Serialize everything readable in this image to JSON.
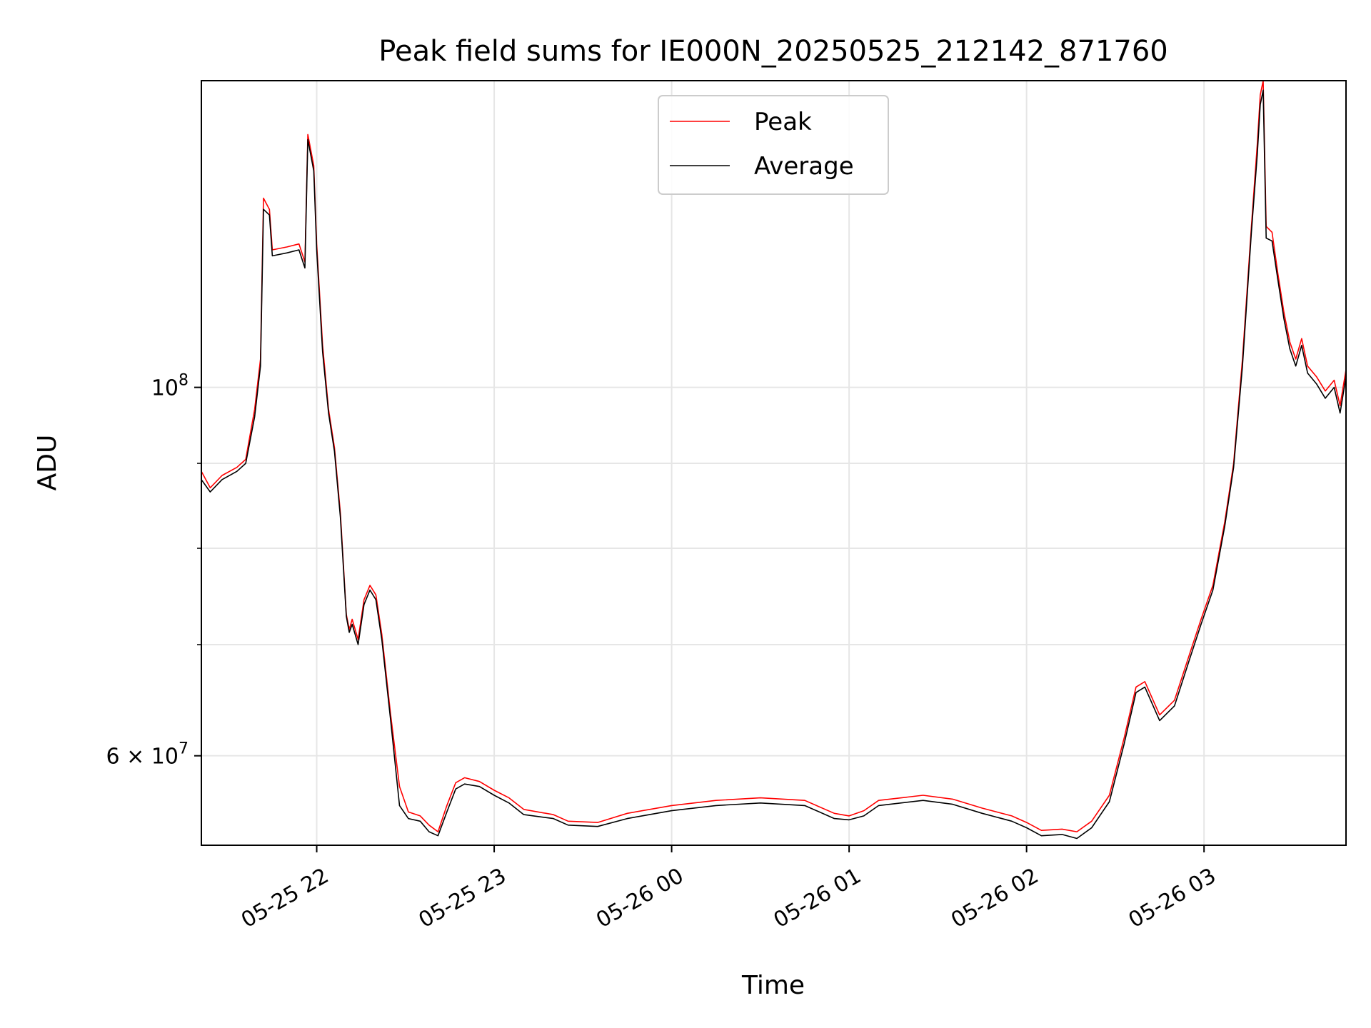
{
  "chart_data": {
    "type": "line",
    "title": "Peak field sums for IE000N_20250525_212142_871760",
    "xlabel": "Time",
    "ylabel": "ADU",
    "y_scale": "log",
    "grid": true,
    "legend_position": "top-center",
    "xlim": [
      "2025-05-25 21:21",
      "2025-05-26 03:48"
    ],
    "ylim": [
      53000000,
      153000000
    ],
    "x_ticks": [
      {
        "t": "2025-05-25 22:00",
        "label": "05-25 22"
      },
      {
        "t": "2025-05-25 23:00",
        "label": "05-25 23"
      },
      {
        "t": "2025-05-26 00:00",
        "label": "05-26 00"
      },
      {
        "t": "2025-05-26 01:00",
        "label": "05-26 01"
      },
      {
        "t": "2025-05-26 02:00",
        "label": "05-26 02"
      },
      {
        "t": "2025-05-26 03:00",
        "label": "05-26 03"
      }
    ],
    "y_ticks": [
      {
        "value": 60000000,
        "label": "6 × 10⁷",
        "base": "6 × 10",
        "exp": "7"
      },
      {
        "value": 100000000,
        "label": "10⁸",
        "base": "10",
        "exp": "8"
      }
    ],
    "y_minor_gridlines": [
      70000000,
      80000000,
      90000000,
      200000000
    ],
    "series": [
      {
        "name": "Peak",
        "color": "#ff0000",
        "points": [
          [
            "2025-05-25 21:21",
            89000000
          ],
          [
            "2025-05-25 21:24",
            87000000
          ],
          [
            "2025-05-25 21:28",
            88500000
          ],
          [
            "2025-05-25 21:33",
            89500000
          ],
          [
            "2025-05-25 21:36",
            90500000
          ],
          [
            "2025-05-25 21:39",
            97000000
          ],
          [
            "2025-05-25 21:41",
            104000000
          ],
          [
            "2025-05-25 21:42",
            130000000
          ],
          [
            "2025-05-25 21:44",
            128000000
          ],
          [
            "2025-05-25 21:45",
            121000000
          ],
          [
            "2025-05-25 21:50",
            121500000
          ],
          [
            "2025-05-25 21:54",
            122000000
          ],
          [
            "2025-05-25 21:56",
            119000000
          ],
          [
            "2025-05-25 21:57",
            142000000
          ],
          [
            "2025-05-25 21:59",
            136000000
          ],
          [
            "2025-05-25 22:00",
            122000000
          ],
          [
            "2025-05-25 22:02",
            106000000
          ],
          [
            "2025-05-25 22:04",
            97000000
          ],
          [
            "2025-05-25 22:06",
            92000000
          ],
          [
            "2025-05-25 22:08",
            84000000
          ],
          [
            "2025-05-25 22:10",
            73000000
          ],
          [
            "2025-05-25 22:11",
            71500000
          ],
          [
            "2025-05-25 22:12",
            72500000
          ],
          [
            "2025-05-25 22:14",
            70500000
          ],
          [
            "2025-05-25 22:16",
            74500000
          ],
          [
            "2025-05-25 22:18",
            76000000
          ],
          [
            "2025-05-25 22:20",
            75000000
          ],
          [
            "2025-05-25 22:22",
            71000000
          ],
          [
            "2025-05-25 22:25",
            63500000
          ],
          [
            "2025-05-25 22:28",
            57500000
          ],
          [
            "2025-05-25 22:31",
            55500000
          ],
          [
            "2025-05-25 22:35",
            55200000
          ],
          [
            "2025-05-25 22:38",
            54500000
          ],
          [
            "2025-05-25 22:41",
            54000000
          ],
          [
            "2025-05-25 22:44",
            56000000
          ],
          [
            "2025-05-25 22:47",
            57800000
          ],
          [
            "2025-05-25 22:50",
            58200000
          ],
          [
            "2025-05-25 22:55",
            57900000
          ],
          [
            "2025-05-25 23:00",
            57200000
          ],
          [
            "2025-05-25 23:05",
            56600000
          ],
          [
            "2025-05-25 23:10",
            55700000
          ],
          [
            "2025-05-25 23:20",
            55300000
          ],
          [
            "2025-05-25 23:25",
            54800000
          ],
          [
            "2025-05-25 23:35",
            54700000
          ],
          [
            "2025-05-25 23:45",
            55400000
          ],
          [
            "2025-05-26 00:00",
            56000000
          ],
          [
            "2025-05-26 00:15",
            56400000
          ],
          [
            "2025-05-26 00:30",
            56600000
          ],
          [
            "2025-05-26 00:45",
            56400000
          ],
          [
            "2025-05-26 00:55",
            55400000
          ],
          [
            "2025-05-26 01:00",
            55200000
          ],
          [
            "2025-05-26 01:05",
            55600000
          ],
          [
            "2025-05-26 01:10",
            56400000
          ],
          [
            "2025-05-26 01:25",
            56800000
          ],
          [
            "2025-05-26 01:35",
            56500000
          ],
          [
            "2025-05-26 01:45",
            55800000
          ],
          [
            "2025-05-26 01:55",
            55200000
          ],
          [
            "2025-05-26 02:00",
            54700000
          ],
          [
            "2025-05-26 02:05",
            54100000
          ],
          [
            "2025-05-26 02:12",
            54200000
          ],
          [
            "2025-05-26 02:17",
            54000000
          ],
          [
            "2025-05-26 02:22",
            54800000
          ],
          [
            "2025-05-26 02:28",
            56800000
          ],
          [
            "2025-05-26 02:33",
            61500000
          ],
          [
            "2025-05-26 02:37",
            66000000
          ],
          [
            "2025-05-26 02:40",
            66500000
          ],
          [
            "2025-05-26 02:45",
            63500000
          ],
          [
            "2025-05-26 02:50",
            64800000
          ],
          [
            "2025-05-26 02:55",
            69000000
          ],
          [
            "2025-05-26 02:59",
            72500000
          ],
          [
            "2025-05-26 03:03",
            76000000
          ],
          [
            "2025-05-26 03:07",
            83000000
          ],
          [
            "2025-05-26 03:10",
            90000000
          ],
          [
            "2025-05-26 03:13",
            104000000
          ],
          [
            "2025-05-26 03:16",
            125000000
          ],
          [
            "2025-05-26 03:18",
            140000000
          ],
          [
            "2025-05-26 03:19",
            150000000
          ],
          [
            "2025-05-26 03:20",
            153000000
          ],
          [
            "2025-05-26 03:21",
            125000000
          ],
          [
            "2025-05-26 03:23",
            124000000
          ],
          [
            "2025-05-26 03:25",
            117000000
          ],
          [
            "2025-05-26 03:27",
            111000000
          ],
          [
            "2025-05-26 03:29",
            106500000
          ],
          [
            "2025-05-26 03:31",
            104000000
          ],
          [
            "2025-05-26 03:33",
            107000000
          ],
          [
            "2025-05-26 03:35",
            103000000
          ],
          [
            "2025-05-26 03:38",
            101500000
          ],
          [
            "2025-05-26 03:41",
            99500000
          ],
          [
            "2025-05-26 03:44",
            101000000
          ],
          [
            "2025-05-26 03:46",
            97500000
          ],
          [
            "2025-05-26 03:48",
            102500000
          ]
        ]
      },
      {
        "name": "Average",
        "color": "#000000",
        "points": [
          [
            "2025-05-25 21:21",
            88000000
          ],
          [
            "2025-05-25 21:24",
            86500000
          ],
          [
            "2025-05-25 21:28",
            88000000
          ],
          [
            "2025-05-25 21:33",
            89000000
          ],
          [
            "2025-05-25 21:36",
            90000000
          ],
          [
            "2025-05-25 21:39",
            96000000
          ],
          [
            "2025-05-25 21:41",
            103000000
          ],
          [
            "2025-05-25 21:42",
            128000000
          ],
          [
            "2025-05-25 21:44",
            127000000
          ],
          [
            "2025-05-25 21:45",
            120000000
          ],
          [
            "2025-05-25 21:50",
            120500000
          ],
          [
            "2025-05-25 21:54",
            121000000
          ],
          [
            "2025-05-25 21:56",
            118000000
          ],
          [
            "2025-05-25 21:57",
            141000000
          ],
          [
            "2025-05-25 21:59",
            135000000
          ],
          [
            "2025-05-25 22:00",
            121000000
          ],
          [
            "2025-05-25 22:02",
            105000000
          ],
          [
            "2025-05-25 22:04",
            96500000
          ],
          [
            "2025-05-25 22:06",
            91500000
          ],
          [
            "2025-05-25 22:08",
            83500000
          ],
          [
            "2025-05-25 22:10",
            72800000
          ],
          [
            "2025-05-25 22:11",
            71200000
          ],
          [
            "2025-05-25 22:12",
            72000000
          ],
          [
            "2025-05-25 22:14",
            70000000
          ],
          [
            "2025-05-25 22:16",
            74000000
          ],
          [
            "2025-05-25 22:18",
            75500000
          ],
          [
            "2025-05-25 22:20",
            74500000
          ],
          [
            "2025-05-25 22:22",
            70500000
          ],
          [
            "2025-05-25 22:25",
            63000000
          ],
          [
            "2025-05-25 22:28",
            56000000
          ],
          [
            "2025-05-25 22:31",
            55000000
          ],
          [
            "2025-05-25 22:35",
            54800000
          ],
          [
            "2025-05-25 22:38",
            54000000
          ],
          [
            "2025-05-25 22:41",
            53700000
          ],
          [
            "2025-05-25 22:44",
            55500000
          ],
          [
            "2025-05-25 22:47",
            57300000
          ],
          [
            "2025-05-25 22:50",
            57700000
          ],
          [
            "2025-05-25 22:55",
            57500000
          ],
          [
            "2025-05-25 23:00",
            56800000
          ],
          [
            "2025-05-25 23:05",
            56200000
          ],
          [
            "2025-05-25 23:10",
            55300000
          ],
          [
            "2025-05-25 23:20",
            55000000
          ],
          [
            "2025-05-25 23:25",
            54500000
          ],
          [
            "2025-05-25 23:35",
            54400000
          ],
          [
            "2025-05-25 23:45",
            55000000
          ],
          [
            "2025-05-26 00:00",
            55600000
          ],
          [
            "2025-05-26 00:15",
            56000000
          ],
          [
            "2025-05-26 00:30",
            56200000
          ],
          [
            "2025-05-26 00:45",
            56000000
          ],
          [
            "2025-05-26 00:55",
            55000000
          ],
          [
            "2025-05-26 01:00",
            54900000
          ],
          [
            "2025-05-26 01:05",
            55200000
          ],
          [
            "2025-05-26 01:10",
            56000000
          ],
          [
            "2025-05-26 01:25",
            56400000
          ],
          [
            "2025-05-26 01:35",
            56100000
          ],
          [
            "2025-05-26 01:45",
            55400000
          ],
          [
            "2025-05-26 01:55",
            54800000
          ],
          [
            "2025-05-26 02:00",
            54300000
          ],
          [
            "2025-05-26 02:05",
            53700000
          ],
          [
            "2025-05-26 02:12",
            53800000
          ],
          [
            "2025-05-26 02:17",
            53500000
          ],
          [
            "2025-05-26 02:22",
            54300000
          ],
          [
            "2025-05-26 02:28",
            56300000
          ],
          [
            "2025-05-26 02:33",
            61000000
          ],
          [
            "2025-05-26 02:37",
            65500000
          ],
          [
            "2025-05-26 02:40",
            66000000
          ],
          [
            "2025-05-26 02:45",
            63000000
          ],
          [
            "2025-05-26 02:50",
            64300000
          ],
          [
            "2025-05-26 02:55",
            68500000
          ],
          [
            "2025-05-26 02:59",
            72000000
          ],
          [
            "2025-05-26 03:03",
            75500000
          ],
          [
            "2025-05-26 03:07",
            82500000
          ],
          [
            "2025-05-26 03:10",
            89500000
          ],
          [
            "2025-05-26 03:13",
            103000000
          ],
          [
            "2025-05-26 03:16",
            124000000
          ],
          [
            "2025-05-26 03:18",
            138000000
          ],
          [
            "2025-05-26 03:19",
            148000000
          ],
          [
            "2025-05-26 03:20",
            151000000
          ],
          [
            "2025-05-26 03:21",
            123000000
          ],
          [
            "2025-05-26 03:23",
            122500000
          ],
          [
            "2025-05-26 03:25",
            116000000
          ],
          [
            "2025-05-26 03:27",
            110000000
          ],
          [
            "2025-05-26 03:29",
            105500000
          ],
          [
            "2025-05-26 03:31",
            103000000
          ],
          [
            "2025-05-26 03:33",
            106000000
          ],
          [
            "2025-05-26 03:35",
            102000000
          ],
          [
            "2025-05-26 03:38",
            100500000
          ],
          [
            "2025-05-26 03:41",
            98500000
          ],
          [
            "2025-05-26 03:44",
            100000000
          ],
          [
            "2025-05-26 03:46",
            96500000
          ],
          [
            "2025-05-26 03:48",
            101500000
          ]
        ]
      }
    ]
  }
}
